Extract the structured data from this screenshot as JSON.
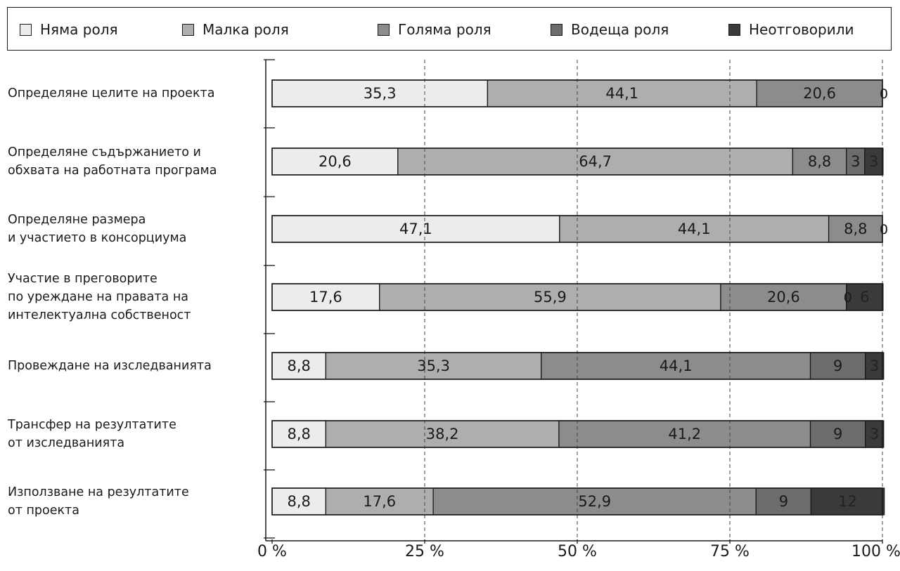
{
  "chart_data": {
    "type": "bar",
    "orientation": "horizontal",
    "stacked": true,
    "normalized": true,
    "categories": [
      [
        "Определяне целите на проекта"
      ],
      [
        "Определяне съдържанието и",
        "обхвата на работната програма"
      ],
      [
        "Определяне размера",
        "и участието в консорциума"
      ],
      [
        "Участие в преговорите",
        "по уреждане на правата на",
        "интелектуална собственост"
      ],
      [
        "Провеждане на изследванията"
      ],
      [
        "Трансфер на резултатите",
        "от изследванията"
      ],
      [
        "Използване на резултатите",
        "от проекта"
      ]
    ],
    "series": [
      {
        "name": "Няма роля",
        "color": "#ececec",
        "values": [
          35.3,
          20.6,
          47.1,
          17.6,
          8.8,
          8.8,
          8.8
        ],
        "labels": [
          "35,3",
          "20,6",
          "47,1",
          "17,6",
          "8,8",
          "8,8",
          "8,8"
        ]
      },
      {
        "name": "Малка роля",
        "color": "#aeaeae",
        "values": [
          44.1,
          64.7,
          44.1,
          55.9,
          35.3,
          38.2,
          17.6
        ],
        "labels": [
          "44,1",
          "64,7",
          "44,1",
          "55,9",
          "35,3",
          "38,2",
          "17,6"
        ]
      },
      {
        "name": "Голяма роля",
        "color": "#8c8c8c",
        "values": [
          20.6,
          8.8,
          8.8,
          20.6,
          44.1,
          41.2,
          52.9
        ],
        "labels": [
          "20,6",
          "8,8",
          "8,8",
          "20,6",
          "44,1",
          "41,2",
          "52,9"
        ]
      },
      {
        "name": "Водеща роля",
        "color": "#6c6c6c",
        "values": [
          0,
          3,
          0,
          0,
          9,
          9,
          9
        ],
        "labels": [
          "0",
          "3",
          "0",
          "0",
          "9",
          "9",
          "9"
        ]
      },
      {
        "name": "Неотговорили",
        "color": "#3a3a3a",
        "values": [
          0,
          3,
          0,
          6,
          3,
          3,
          12
        ],
        "labels": [
          "",
          "3",
          "",
          "6",
          "3",
          "3",
          "12"
        ]
      }
    ],
    "xlim": [
      0,
      100
    ],
    "xticks": [
      0,
      25,
      50,
      75,
      100
    ],
    "xtick_labels": [
      "0 %",
      "25 %",
      "50 %",
      "75 %",
      "100 %"
    ],
    "grid": "vertical dashed at 25, 50, 75, 100",
    "legend_position": "top"
  }
}
